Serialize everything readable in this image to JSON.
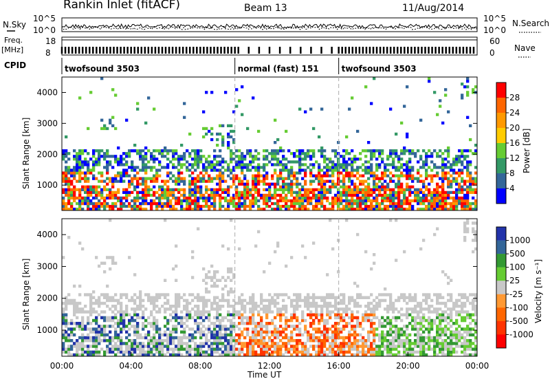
{
  "header": {
    "station": "Rankin Inlet (fitACF)",
    "beam": "Beam 13",
    "date": "11/Aug/2014"
  },
  "top_panels": {
    "noise_label": "N.Sky",
    "noise_left_ticks": [
      "10^5",
      "10^0"
    ],
    "noise_right_ticks": [
      "10^5",
      "10^0"
    ],
    "noise_right_label": "N.Search",
    "freq_label": "Freq.",
    "freq_unit": "[MHz]",
    "freq_ticks": [
      "18",
      "8"
    ],
    "nave_label": "Nave",
    "nave_ticks": [
      "60",
      "0"
    ],
    "cpid_label": "CPID",
    "cpid_modes": [
      {
        "start_hour": 0,
        "end_hour": 10,
        "label": "twofsound 3503"
      },
      {
        "start_hour": 10,
        "end_hour": 16,
        "label": "normal (fast) 151"
      },
      {
        "start_hour": 16,
        "end_hour": 24,
        "label": "twofsound 3503"
      }
    ]
  },
  "chart_data": [
    {
      "type": "heatmap",
      "name": "power",
      "xlabel": "",
      "ylabel": "Slant Range [km]",
      "xlim": [
        0,
        24
      ],
      "ylim": [
        180,
        4500
      ],
      "yticks": [
        1000,
        2000,
        3000,
        4000
      ],
      "colorbar_label": "Power [dB]",
      "colorbar_ticks": [
        "28",
        "24",
        "20",
        "16",
        "12",
        "8",
        "4"
      ],
      "colorbar_colors": [
        "#ff0000",
        "#ff6600",
        "#ff9900",
        "#ffcc00",
        "#66cc33",
        "#339966",
        "#336699",
        "#0000ff"
      ]
    },
    {
      "type": "heatmap",
      "name": "velocity",
      "xlabel": "Time UT",
      "ylabel": "Slant Range [km]",
      "xlim": [
        0,
        24
      ],
      "ylim": [
        180,
        4500
      ],
      "yticks": [
        1000,
        2000,
        3000,
        4000
      ],
      "xticks": [
        "00:00",
        "04:00",
        "08:00",
        "12:00",
        "16:00",
        "20:00",
        "00:00"
      ],
      "colorbar_label": "Velocity [m s⁻¹]",
      "colorbar_ticks": [
        "1000",
        "500",
        "100",
        "25",
        "-25",
        "-100",
        "-500",
        "-1000"
      ],
      "colorbar_colors": [
        "#2233aa",
        "#336699",
        "#339933",
        "#66cc33",
        "#c8c8c8",
        "#ff9933",
        "#ff6600",
        "#ff3300",
        "#ff0000"
      ]
    }
  ]
}
